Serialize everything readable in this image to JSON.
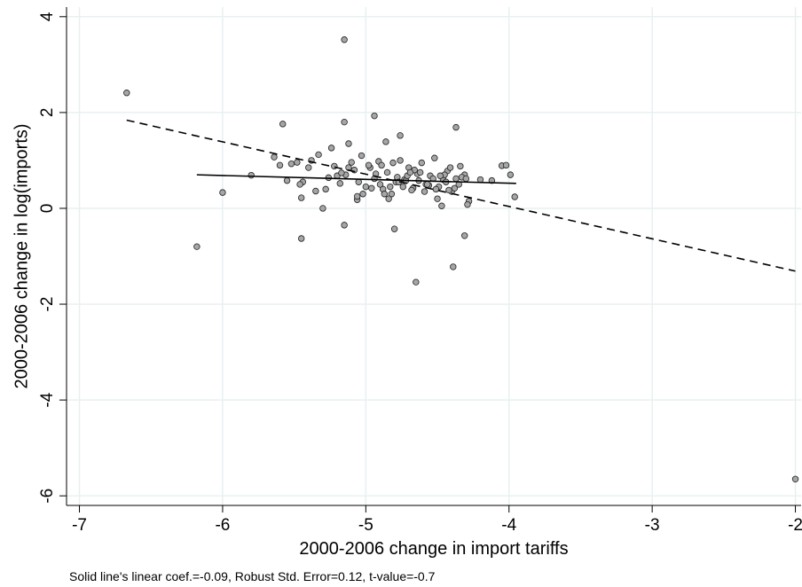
{
  "chart_data": {
    "type": "scatter",
    "xlabel": "2000-2006 change in import tariffs",
    "ylabel": "2000-2006 change in log(imports)",
    "note": "Solid line's linear coef.=-0.09, Robust Std. Error=0.12, t-value=-0.7",
    "xlim": [
      -7.09,
      -1.96
    ],
    "ylim": [
      -6.2,
      4.2
    ],
    "xticks": [
      -7,
      -6,
      -5,
      -4,
      -3,
      -2
    ],
    "yticks": [
      -6,
      -4,
      -2,
      0,
      2,
      4
    ],
    "grid": true,
    "points": {
      "color": "#a6a6a6",
      "x": [
        -6.67,
        -6.18,
        -6.0,
        -5.15,
        -2.0,
        -4.65,
        -4.39,
        -4.31,
        -5.45,
        -5.15,
        -4.8,
        -5.58,
        -5.15,
        -4.94,
        -4.76,
        -4.86,
        -4.37,
        -5.12,
        -5.24,
        -5.64,
        -5.8,
        -4.05,
        -3.96,
        -5.6,
        -5.52,
        -5.48,
        -5.44,
        -5.4,
        -5.35,
        -5.3,
        -5.26,
        -5.22,
        -5.18,
        -5.14,
        -5.1,
        -5.06,
        -5.03,
        -5.0,
        -4.97,
        -4.94,
        -4.91,
        -4.88,
        -4.85,
        -4.82,
        -4.79,
        -4.76,
        -4.73,
        -4.7,
        -4.67,
        -4.64,
        -4.61,
        -4.58,
        -4.55,
        -4.52,
        -4.49,
        -4.46,
        -4.43,
        -4.4,
        -4.37,
        -4.34,
        -4.31,
        -4.28,
        -4.2,
        -4.12,
        -3.99,
        -5.46,
        -5.38,
        -5.28,
        -5.2,
        -5.08,
        -5.02,
        -4.98,
        -4.9,
        -4.84,
        -4.78,
        -4.72,
        -4.68,
        -4.62,
        -4.56,
        -4.5,
        -4.44,
        -4.38,
        -4.33,
        -4.29,
        -5.55,
        -5.45,
        -5.33,
        -5.17,
        -5.05,
        -4.96,
        -4.87,
        -4.81,
        -4.74,
        -4.66,
        -4.59,
        -4.53,
        -4.47,
        -4.41,
        -4.35,
        -5.12,
        -4.93,
        -4.83,
        -4.71,
        -4.63,
        -4.51,
        -4.45,
        -4.3,
        -5.06,
        -4.89,
        -4.77,
        -4.69,
        -4.57,
        -4.48,
        -4.42,
        -4.02
      ],
      "y": [
        2.41,
        -0.8,
        0.33,
        3.52,
        -5.65,
        -1.54,
        -1.22,
        -0.57,
        -0.63,
        -0.35,
        -0.43,
        1.76,
        1.8,
        1.93,
        1.52,
        1.39,
        1.69,
        1.35,
        1.26,
        1.07,
        0.69,
        0.89,
        0.24,
        0.9,
        0.93,
        0.96,
        0.55,
        0.85,
        0.36,
        0.0,
        0.64,
        0.88,
        0.52,
        0.7,
        0.96,
        0.18,
        1.1,
        0.45,
        0.85,
        0.62,
        0.98,
        0.4,
        0.75,
        0.3,
        0.55,
        1.0,
        0.6,
        0.85,
        0.42,
        0.72,
        0.95,
        0.5,
        0.68,
        1.05,
        0.45,
        0.6,
        0.78,
        0.35,
        0.62,
        0.88,
        0.7,
        0.15,
        0.6,
        0.58,
        0.7,
        0.5,
        1.0,
        0.4,
        0.68,
        0.8,
        0.3,
        0.9,
        0.5,
        0.2,
        0.65,
        0.58,
        0.38,
        0.75,
        0.48,
        0.2,
        0.55,
        0.42,
        0.65,
        0.08,
        0.58,
        0.22,
        1.12,
        0.74,
        0.55,
        0.42,
        0.3,
        0.95,
        0.45,
        0.8,
        0.35,
        0.62,
        0.05,
        0.85,
        0.5,
        0.85,
        0.72,
        0.45,
        0.68,
        0.58,
        0.4,
        0.7,
        0.62,
        0.25,
        0.9,
        0.55,
        0.75,
        0.5,
        0.68,
        0.38,
        0.9
      ]
    },
    "fit_lines": [
      {
        "style": "solid",
        "x": [
          -6.18,
          -3.95
        ],
        "y": [
          0.7,
          0.52
        ]
      },
      {
        "style": "dashed",
        "x": [
          -6.67,
          -2.0
        ],
        "y": [
          1.84,
          -1.31
        ]
      }
    ]
  }
}
